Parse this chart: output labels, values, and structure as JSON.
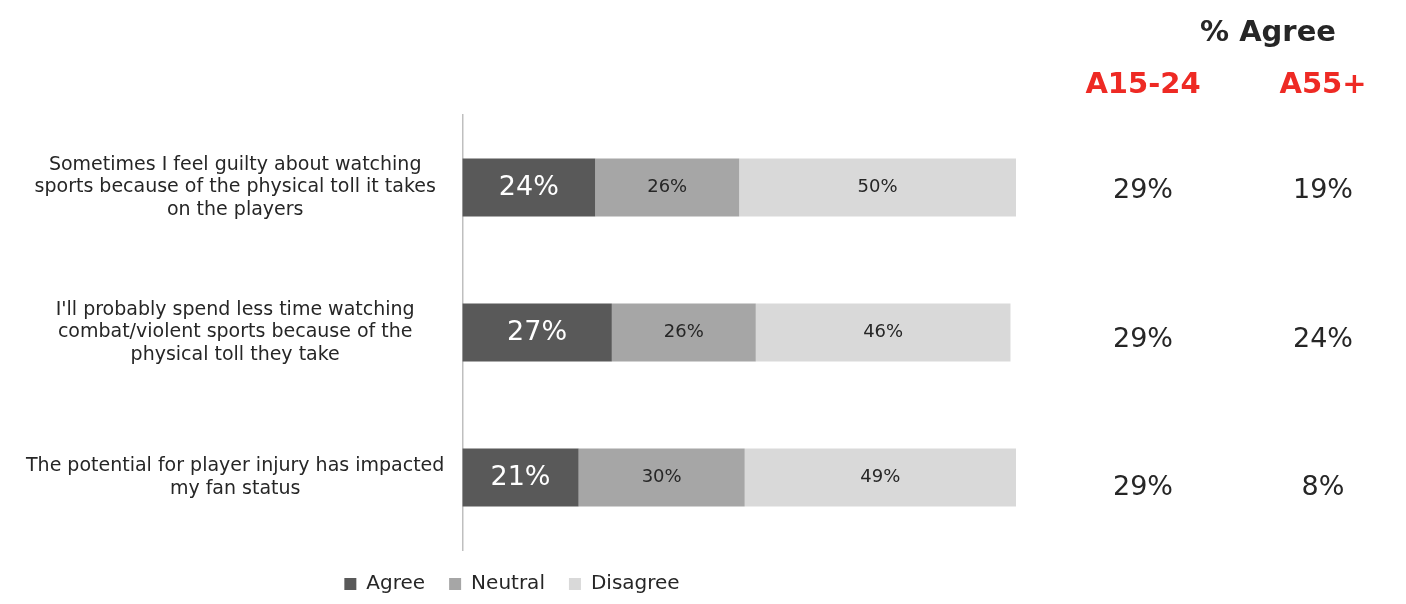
{
  "chart_data": [
    {
      "type": "bar",
      "orientation": "horizontal",
      "stacked": true,
      "categories": [
        "Sometimes I feel guilty about watching sports because of the physical toll it takes on the players",
        "I'll probably spend less time watching combat/violent sports because of the physical toll they take",
        "The potential for player injury has impacted my fan status"
      ],
      "series": [
        {
          "name": "Agree",
          "color": "#595959",
          "values": [
            24,
            27,
            21
          ],
          "value_labels": [
            "24%",
            "27%",
            "21%"
          ]
        },
        {
          "name": "Neutral",
          "color": "#a6a6a6",
          "values": [
            26,
            26,
            30
          ],
          "value_labels": [
            "26%",
            "26%",
            "30%"
          ]
        },
        {
          "name": "Disagree",
          "color": "#d9d9d9",
          "values": [
            50,
            46,
            49
          ],
          "value_labels": [
            "50%",
            "46%",
            "49%"
          ]
        }
      ],
      "legend": "bottom",
      "grid": false,
      "tick_labels": "y"
    },
    {
      "type": "heatmap",
      "title": "% Agree",
      "categories": [
        "A15-24",
        "A55+"
      ],
      "y_categories": [
        null,
        null,
        null
      ],
      "cells": [
        [
          29,
          19
        ],
        [
          29,
          24
        ],
        [
          29,
          8
        ]
      ],
      "cell_labels": [
        [
          "29%",
          "19%"
        ],
        [
          "29%",
          "24%"
        ],
        [
          "29%",
          "8%"
        ]
      ]
    }
  ]
}
